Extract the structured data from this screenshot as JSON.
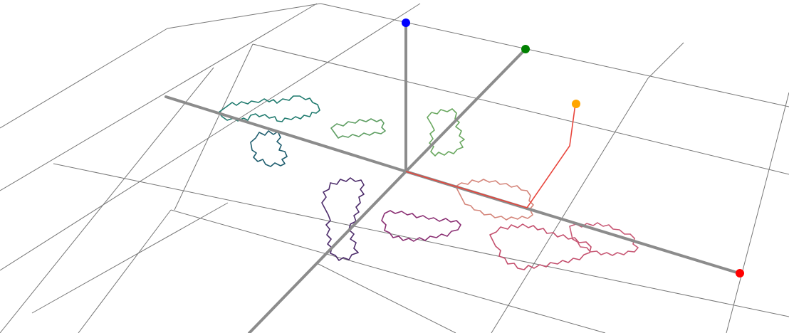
{
  "scene": {
    "background": "#ffffff",
    "grid_color": "#777777",
    "axis_color": "#8c8c8c",
    "vector_color": "#e8453c",
    "markers": [
      {
        "name": "x-axis-end-marker",
        "color": "#ff0000"
      },
      {
        "name": "y-axis-end-marker",
        "color": "#0000ff"
      },
      {
        "name": "z-axis-end-marker",
        "color": "#008000"
      },
      {
        "name": "point-marker",
        "color": "#ffa500"
      }
    ],
    "fractal": {
      "name": "fractal-dragon-curve",
      "gradient": [
        "#1f7a6e",
        "#4d2c6b",
        "#7d2f7a",
        "#b8466e",
        "#d4857a",
        "#6aa860"
      ]
    }
  }
}
